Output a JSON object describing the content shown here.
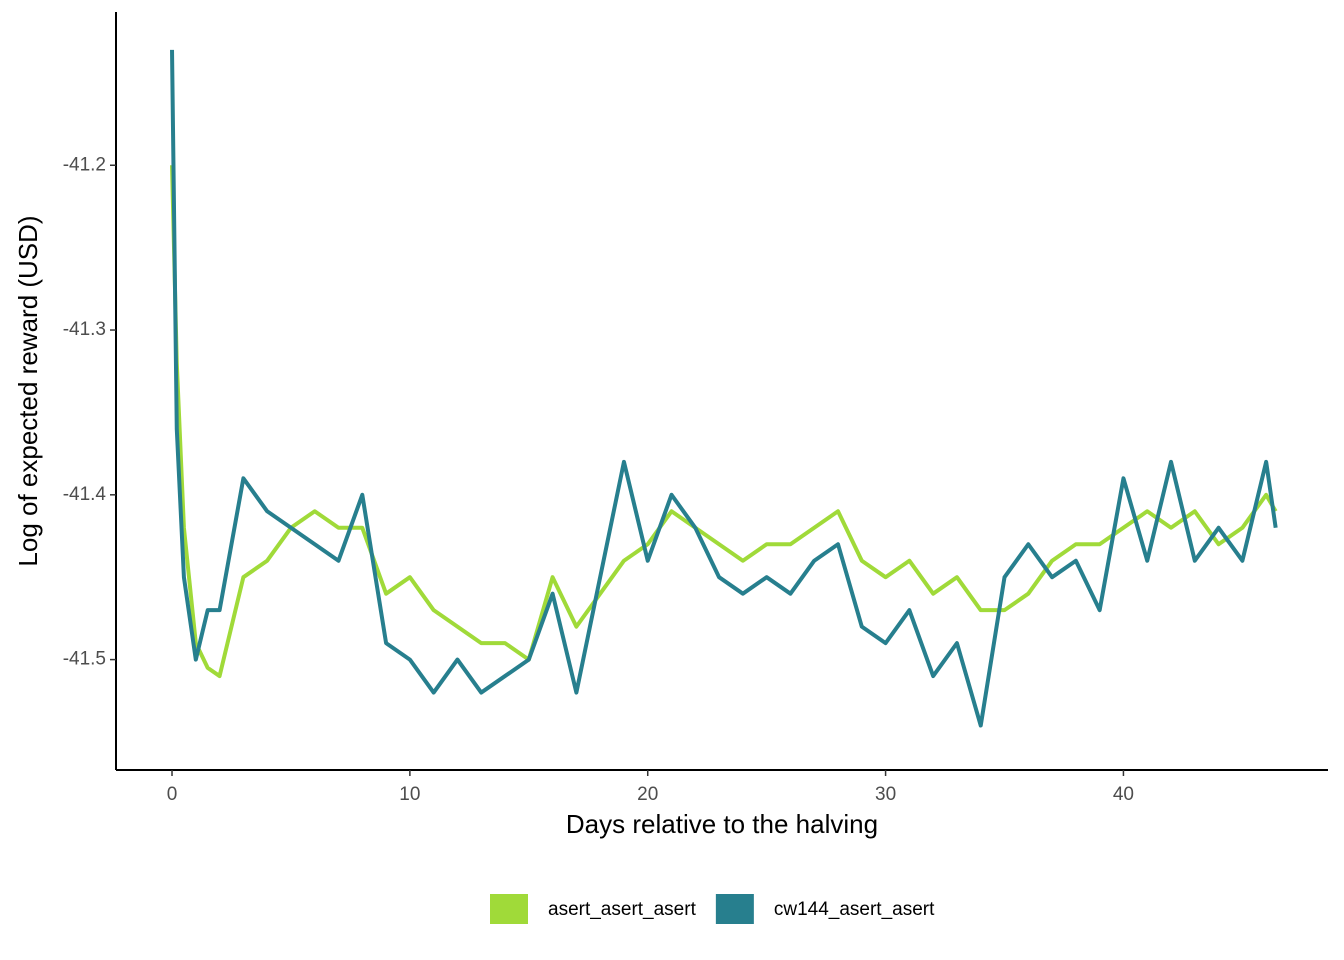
{
  "chart_data": {
    "type": "line",
    "x_label": "Days relative to the halving",
    "y_label": "Log of expected reward (USD)",
    "x": [
      0,
      0.2,
      0.5,
      1,
      1.5,
      2,
      3,
      4,
      5,
      6,
      7,
      8,
      9,
      10,
      11,
      12,
      13,
      14,
      15,
      16,
      17,
      18,
      19,
      20,
      21,
      22,
      23,
      24,
      25,
      26,
      27,
      28,
      29,
      30,
      31,
      32,
      33,
      34,
      35,
      36,
      37,
      38,
      39,
      40,
      41,
      42,
      43,
      44,
      45,
      46,
      46.4
    ],
    "series": [
      {
        "name": "asert_asert_asert",
        "color": "#a0da39",
        "values": [
          -41.2,
          -41.32,
          -41.42,
          -41.49,
          -41.505,
          -41.51,
          -41.45,
          -41.44,
          -41.42,
          -41.41,
          -41.42,
          -41.42,
          -41.46,
          -41.45,
          -41.47,
          -41.48,
          -41.49,
          -41.49,
          -41.5,
          -41.45,
          -41.48,
          -41.46,
          -41.44,
          -41.43,
          -41.41,
          -41.42,
          -41.43,
          -41.44,
          -41.43,
          -41.43,
          -41.42,
          -41.41,
          -41.44,
          -41.45,
          -41.44,
          -41.46,
          -41.45,
          -41.47,
          -41.47,
          -41.46,
          -41.44,
          -41.43,
          -41.43,
          -41.42,
          -41.41,
          -41.42,
          -41.41,
          -41.43,
          -41.42,
          -41.4,
          -41.41
        ]
      },
      {
        "name": "cw144_asert_asert",
        "color": "#277f8e",
        "values": [
          -41.13,
          -41.36,
          -41.45,
          -41.5,
          -41.47,
          -41.47,
          -41.39,
          -41.41,
          -41.42,
          -41.43,
          -41.44,
          -41.4,
          -41.49,
          -41.5,
          -41.52,
          -41.5,
          -41.52,
          -41.51,
          -41.5,
          -41.46,
          -41.52,
          -41.45,
          -41.38,
          -41.44,
          -41.4,
          -41.42,
          -41.45,
          -41.46,
          -41.45,
          -41.46,
          -41.44,
          -41.43,
          -41.48,
          -41.49,
          -41.47,
          -41.51,
          -41.49,
          -41.54,
          -41.45,
          -41.43,
          -41.45,
          -41.44,
          -41.47,
          -41.39,
          -41.44,
          -41.38,
          -41.44,
          -41.42,
          -41.44,
          -41.38,
          -41.42
        ]
      }
    ],
    "xlim": [
      -2.355,
      48.6
    ],
    "xticks": [
      0,
      10,
      20,
      30,
      40
    ],
    "ylim": [
      -41.567,
      -41.107
    ],
    "yticks": [
      {
        "value": -41.5,
        "label": "-41.5"
      },
      {
        "value": -41.4,
        "label": "-41.4"
      },
      {
        "value": -41.3,
        "label": "-41.3"
      },
      {
        "value": -41.2,
        "label": "-41.2"
      }
    ],
    "legend": "bottom"
  }
}
